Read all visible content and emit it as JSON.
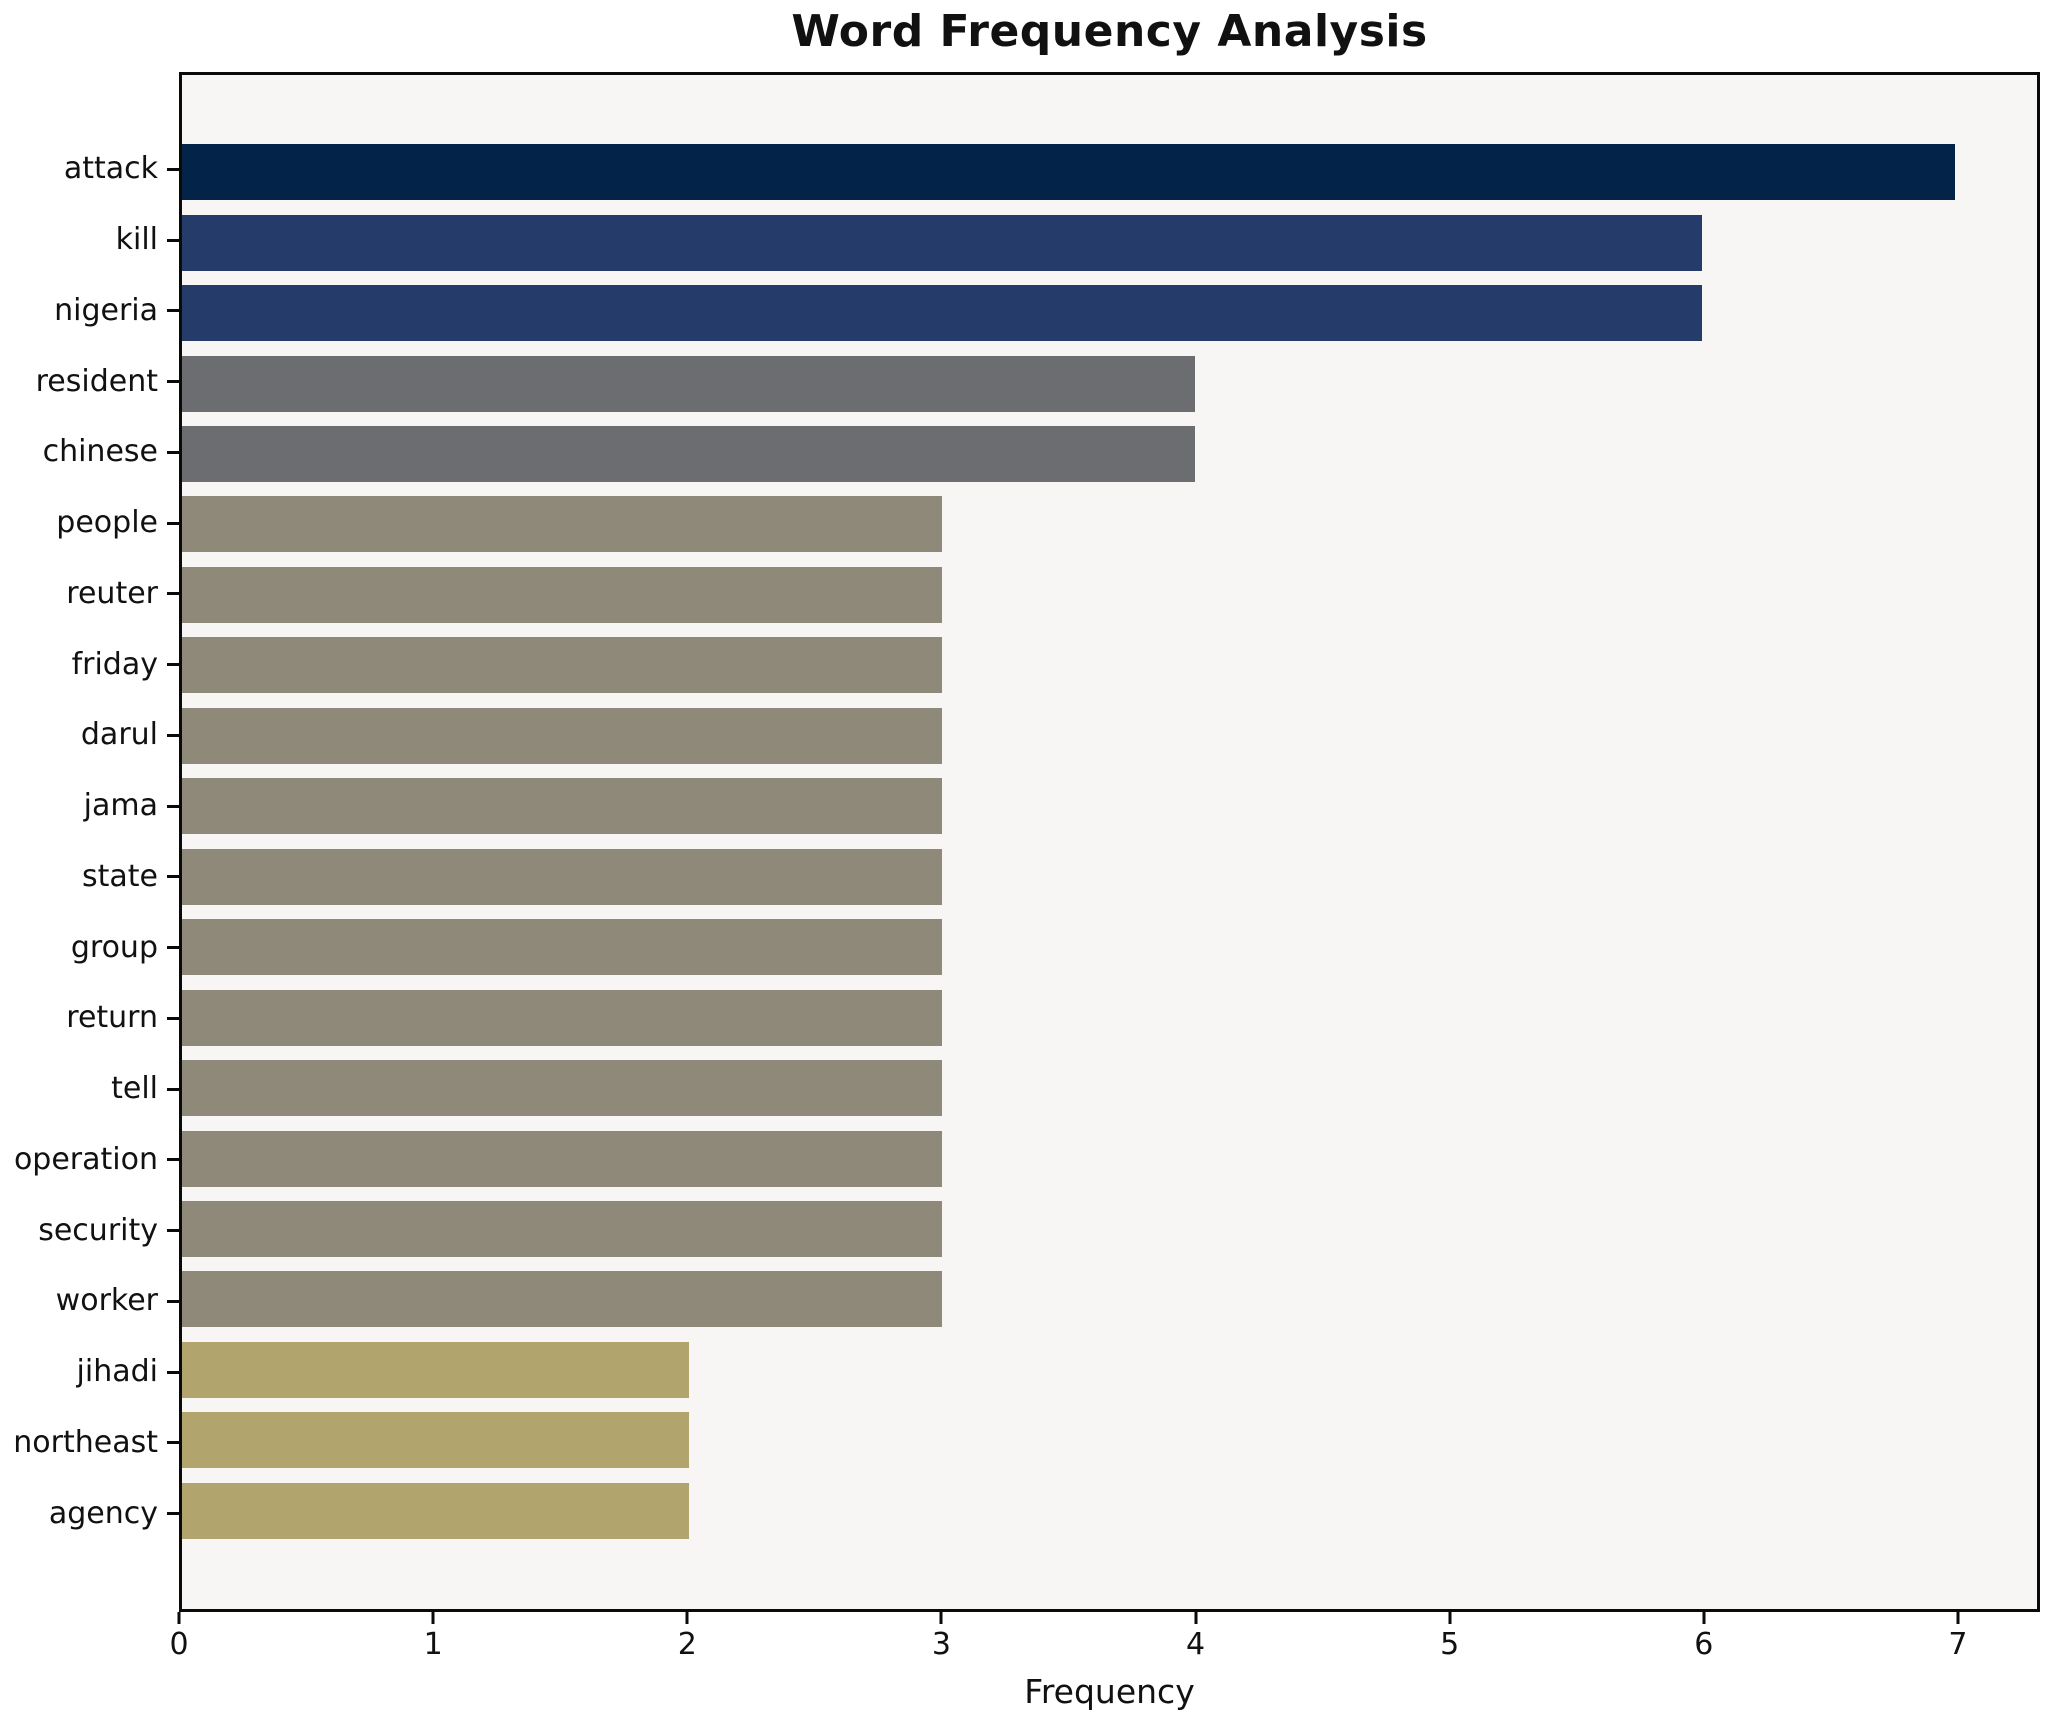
{
  "title": "Word Frequency Analysis",
  "xlabel": "Frequency",
  "colors": {
    "plot_background": "#f7f6f4",
    "figure_background": "#ffffff",
    "spine": "#0a0a0a",
    "text": "#111111",
    "bar_dark_navy": "#042349",
    "bar_navy": "#253b69",
    "bar_gray": "#6c6d70",
    "bar_taupe": "#8f897a",
    "bar_khaki": "#b1a56d"
  },
  "chart_data": {
    "type": "bar",
    "orientation": "horizontal",
    "title": "Word Frequency Analysis",
    "xlabel": "Frequency",
    "ylabel": "",
    "categories": [
      "attack",
      "kill",
      "nigeria",
      "resident",
      "chinese",
      "people",
      "reuter",
      "friday",
      "darul",
      "jama",
      "state",
      "group",
      "return",
      "tell",
      "operation",
      "security",
      "worker",
      "jihadi",
      "northeast",
      "agency"
    ],
    "values": [
      7,
      6,
      6,
      4,
      4,
      3,
      3,
      3,
      3,
      3,
      3,
      3,
      3,
      3,
      3,
      3,
      3,
      2,
      2,
      2
    ],
    "bar_colors": [
      "#042349",
      "#253b69",
      "#253b69",
      "#6c6d70",
      "#6c6d70",
      "#8f897a",
      "#8f897a",
      "#8f897a",
      "#8f897a",
      "#8f897a",
      "#8f897a",
      "#8f897a",
      "#8f897a",
      "#8f897a",
      "#8f897a",
      "#8f897a",
      "#8f897a",
      "#b1a56d",
      "#b1a56d",
      "#b1a56d"
    ],
    "xticks": [
      0,
      1,
      2,
      3,
      4,
      5,
      6,
      7
    ],
    "xlim": [
      0,
      7.323
    ],
    "bar_thickness_fraction": 0.8,
    "grid": false,
    "legend": "none"
  }
}
